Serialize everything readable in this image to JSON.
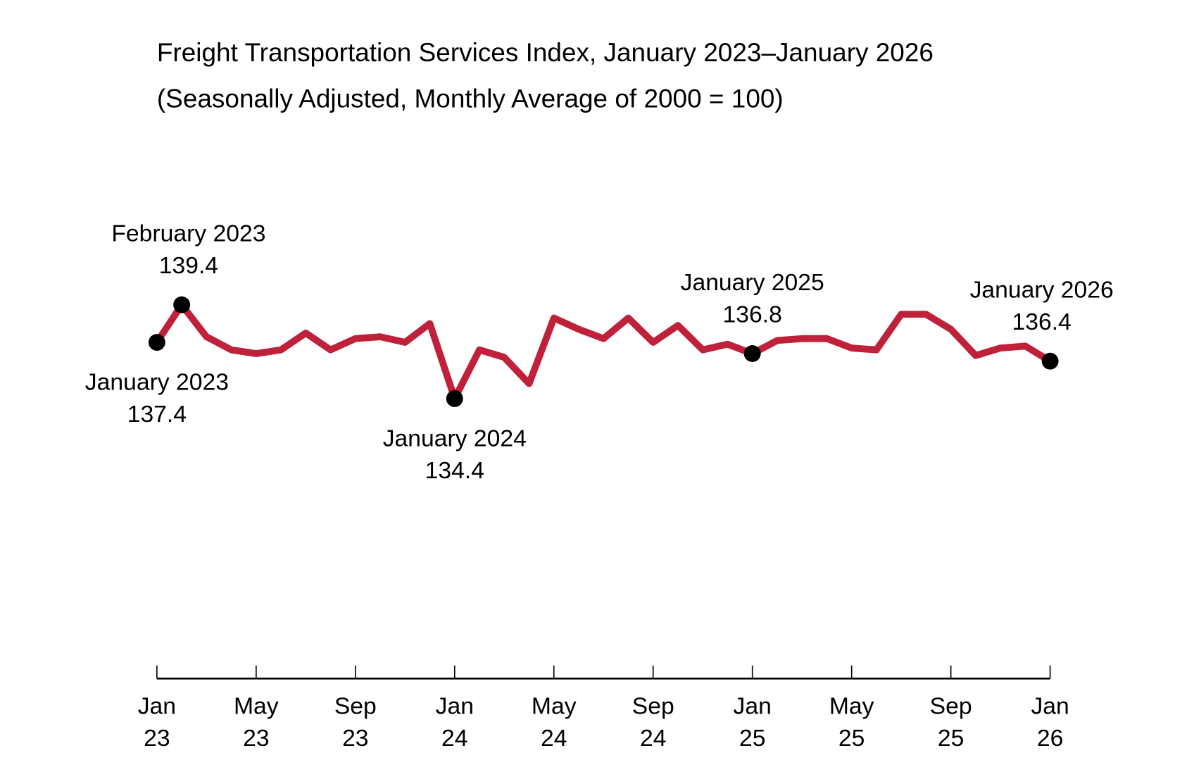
{
  "chart_data": {
    "type": "line",
    "title": "Freight Transportation Services Index, January 2023–January 2026",
    "subtitle": "(Seasonally Adjusted, Monthly Average of 2000 = 100)",
    "xlabel": "",
    "ylabel": "",
    "x_start": "2023-01",
    "x_end": "2026-01",
    "ylim": [
      130,
      142
    ],
    "grid": false,
    "line_color": "#c0213a",
    "marker_color": "#000000",
    "x_ticks": [
      {
        "month_index": 0,
        "line1": "Jan",
        "line2": "23"
      },
      {
        "month_index": 4,
        "line1": "May",
        "line2": "23"
      },
      {
        "month_index": 8,
        "line1": "Sep",
        "line2": "23"
      },
      {
        "month_index": 12,
        "line1": "Jan",
        "line2": "24"
      },
      {
        "month_index": 16,
        "line1": "May",
        "line2": "24"
      },
      {
        "month_index": 20,
        "line1": "Sep",
        "line2": "24"
      },
      {
        "month_index": 24,
        "line1": "Jan",
        "line2": "25"
      },
      {
        "month_index": 28,
        "line1": "May",
        "line2": "25"
      },
      {
        "month_index": 32,
        "line1": "Sep",
        "line2": "25"
      },
      {
        "month_index": 36,
        "line1": "Jan",
        "line2": "26"
      }
    ],
    "values": [
      137.4,
      139.4,
      137.7,
      137.0,
      136.8,
      137.0,
      137.9,
      137.0,
      137.6,
      137.7,
      137.4,
      138.4,
      134.4,
      137.0,
      136.6,
      135.2,
      138.7,
      138.1,
      137.6,
      138.7,
      137.4,
      138.3,
      137.0,
      137.3,
      136.8,
      137.5,
      137.6,
      137.6,
      137.1,
      137.0,
      138.9,
      138.9,
      138.1,
      136.7,
      137.1,
      137.2,
      136.4
    ],
    "annotations": [
      {
        "month_index": 0,
        "label": "January 2023",
        "value_label": "137.4",
        "position": "below"
      },
      {
        "month_index": 1,
        "label": "February 2023",
        "value_label": "139.4",
        "position": "above"
      },
      {
        "month_index": 12,
        "label": "January 2024",
        "value_label": "134.4",
        "position": "below"
      },
      {
        "month_index": 24,
        "label": "January 2025",
        "value_label": "136.8",
        "position": "above"
      },
      {
        "month_index": 36,
        "label": "January 2026",
        "value_label": "136.4",
        "position": "above"
      }
    ]
  }
}
